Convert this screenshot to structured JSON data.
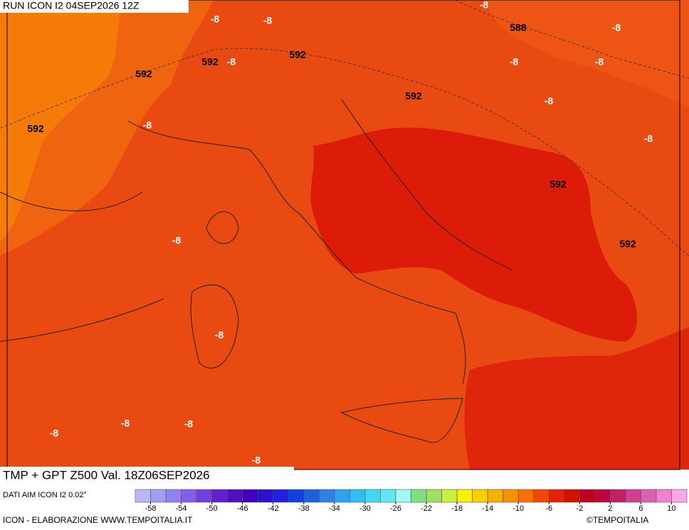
{
  "header": {
    "run": "RUN ICON I2 04SEP2026 12Z"
  },
  "map": {
    "contour_labels": [
      -8,
      588,
      -8,
      -8,
      -8,
      592,
      592,
      -8,
      592,
      -8,
      -8,
      592,
      -8,
      592,
      -8,
      -8,
      592,
      592,
      -8,
      -8,
      -8,
      -8,
      -8,
      -8
    ]
  },
  "footer": {
    "title": "TMP + GPT Z500 Val. 18Z06SEP2026",
    "source": "DATI AIM ICON I2 0.02°",
    "credit": "ICON - ELABORAZIONE WWW.TEMPOITALIA.IT",
    "copyright": "©TEMPOITALIA"
  },
  "colorbar": {
    "range": [
      -60,
      12
    ],
    "ticks": [
      -58,
      -54,
      -50,
      -46,
      -42,
      -38,
      -34,
      -30,
      -26,
      -22,
      -18,
      -14,
      -10,
      -6,
      -2,
      2,
      6,
      10
    ],
    "colors": [
      "#b8b8f8",
      "#a0a0f0",
      "#9080f0",
      "#8060e8",
      "#7040e0",
      "#6020d0",
      "#5010c0",
      "#4000c0",
      "#3010d0",
      "#2020e0",
      "#1040e0",
      "#2060e0",
      "#3080e8",
      "#30a0f0",
      "#30c0f0",
      "#40d8f0",
      "#60e8f0",
      "#a0f8f8",
      "#80e080",
      "#a0e060",
      "#c8f040",
      "#f8f000",
      "#f8d000",
      "#f8b000",
      "#f89000",
      "#f87000",
      "#f04800",
      "#e82000",
      "#d01000",
      "#c00020",
      "#c00040",
      "#c02068",
      "#d04090",
      "#e060b0",
      "#f080d0",
      "#f8a8e8"
    ]
  }
}
